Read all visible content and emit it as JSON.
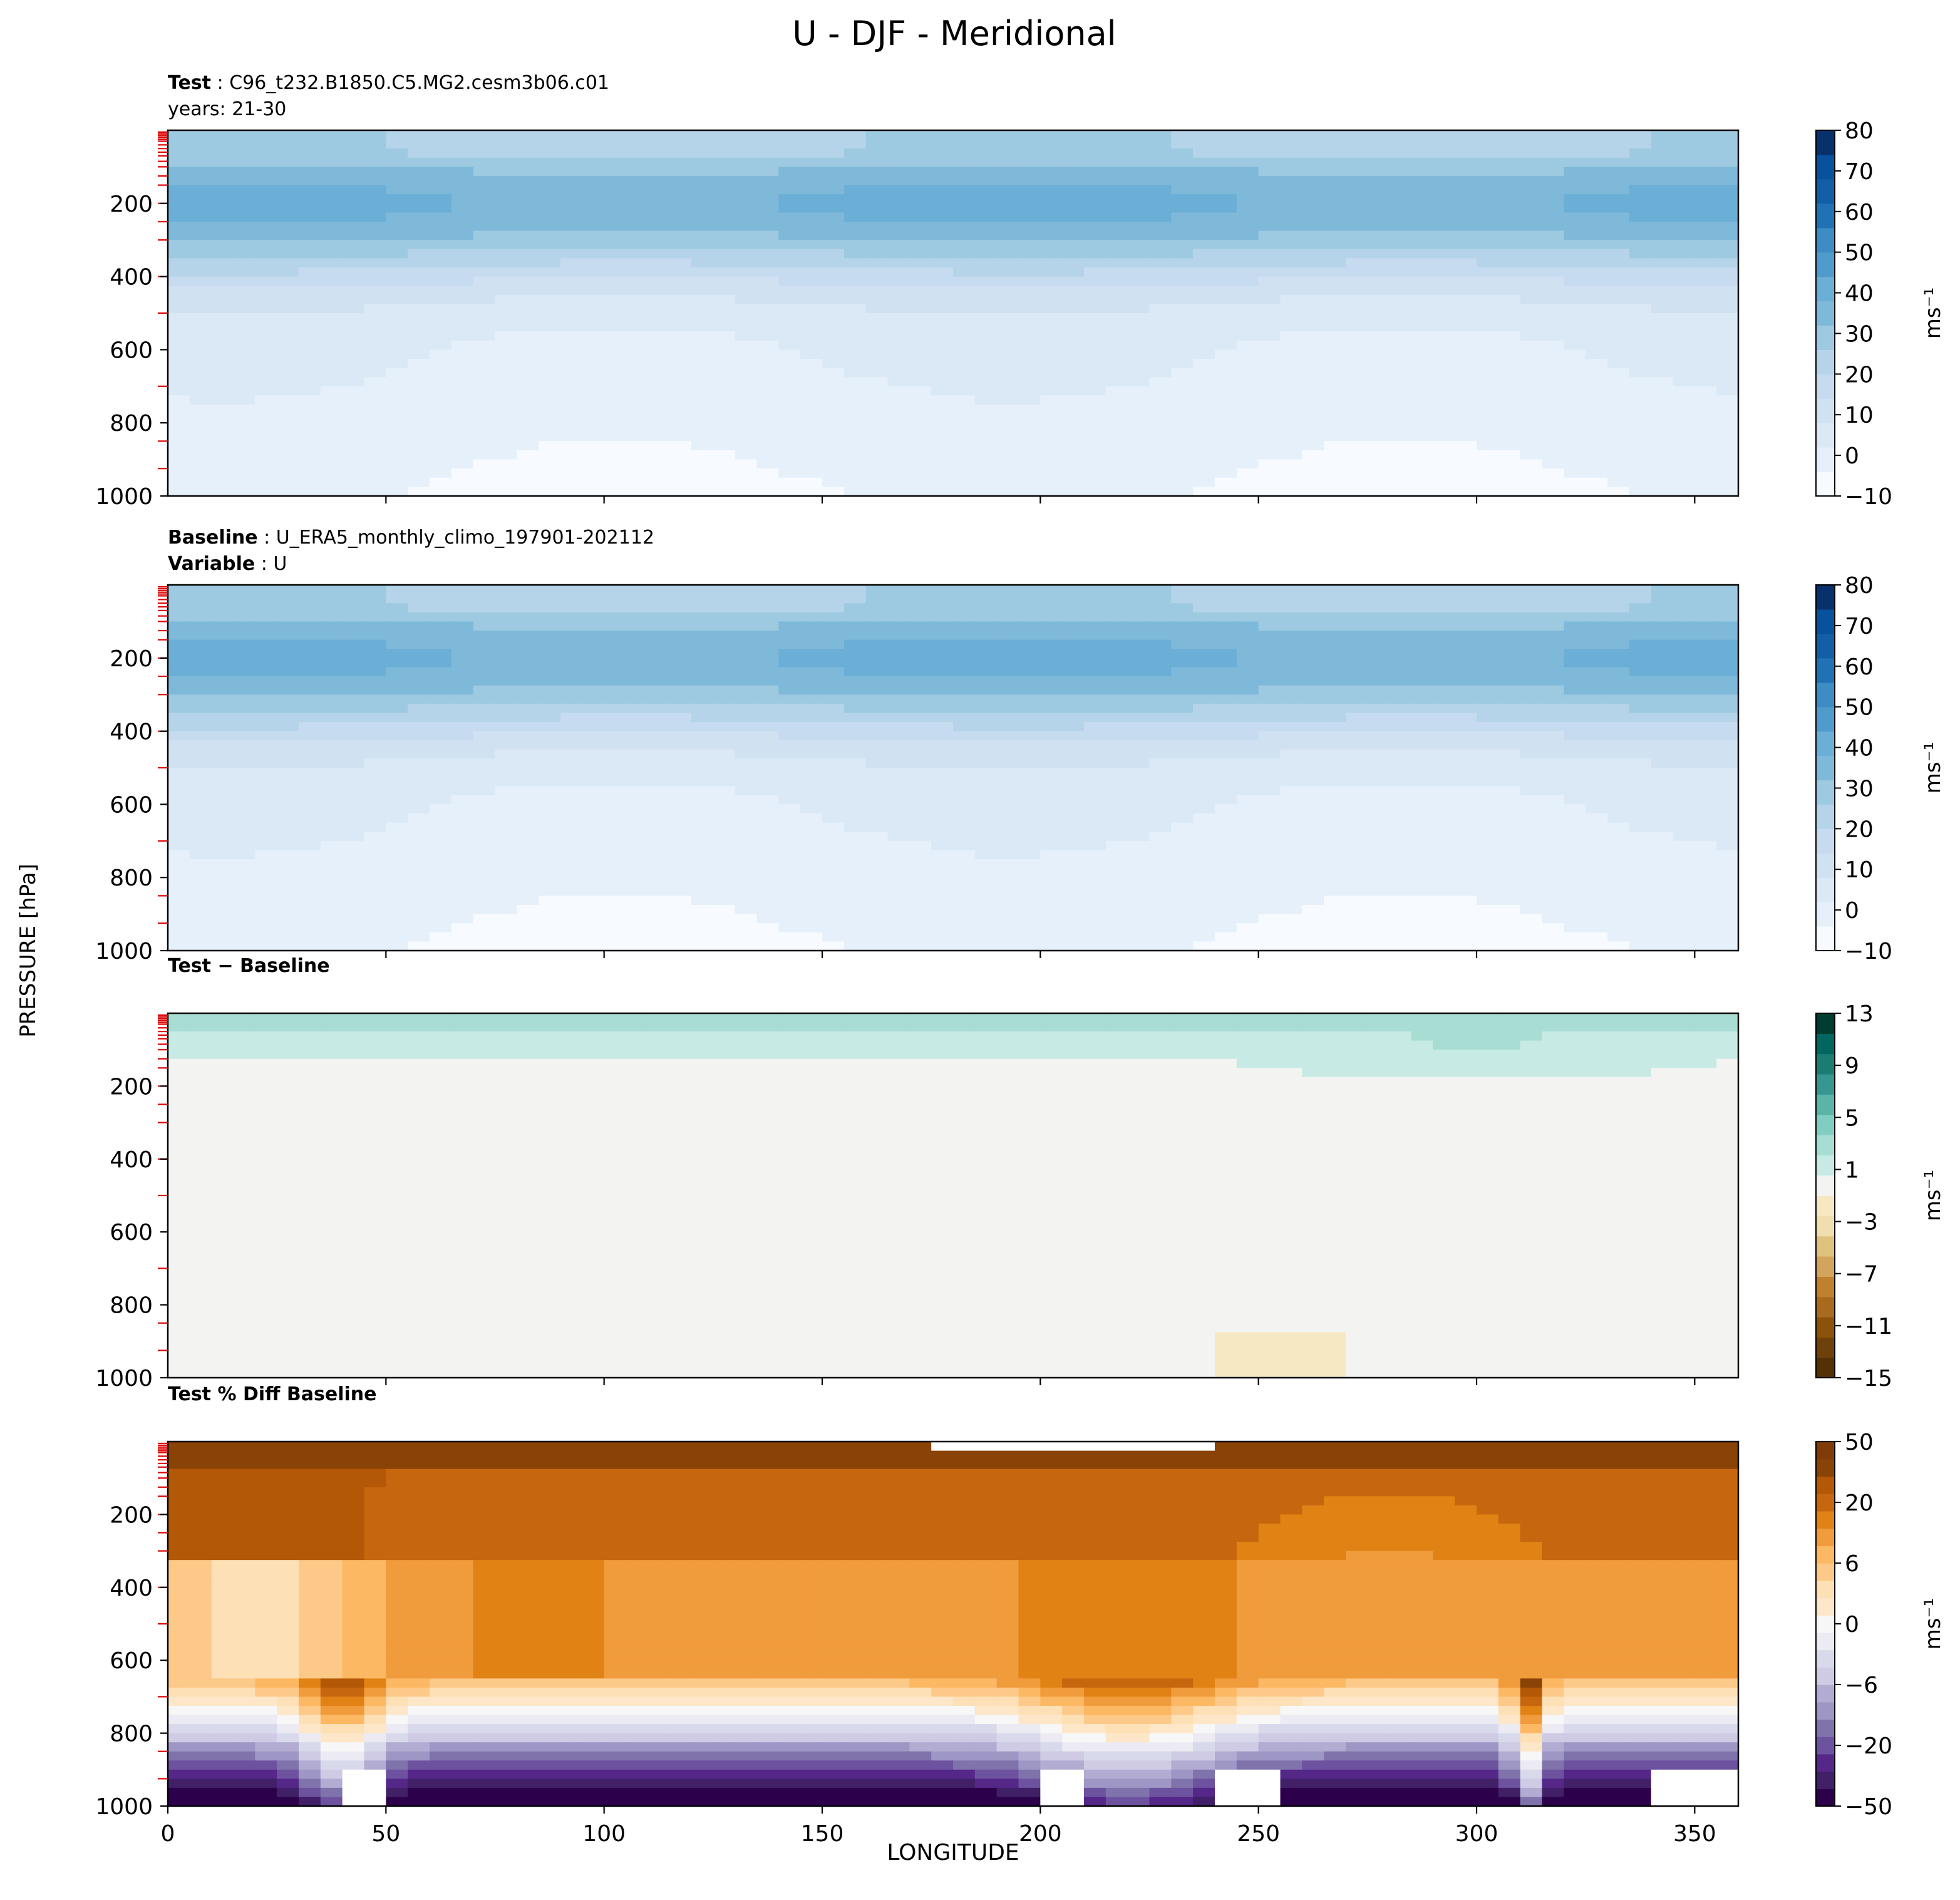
{
  "figure_title": "U - DJF - Meridional",
  "x_axis_label": "LONGITUDE",
  "y_axis_label": "PRESSURE [hPa]",
  "chart_data": [
    {
      "type": "heatmap",
      "panel": "test",
      "header": [
        {
          "label": "Test",
          "sep": " : ",
          "value": "C96_t232.B1850.C5.MG2.cesm3b06.c01"
        },
        {
          "label": "",
          "sep": "",
          "value": "years: 21-30"
        }
      ],
      "x_ticks": [
        50,
        100,
        150,
        200,
        250,
        300,
        350
      ],
      "y_ticks": [
        200,
        400,
        600,
        800,
        1000
      ],
      "xlim": [
        0,
        360
      ],
      "ylim": [
        1000,
        0
      ],
      "colorbar": {
        "ticks": [
          "80",
          "70",
          "60",
          "50",
          "40",
          "30",
          "20",
          "10",
          "0",
          "−10"
        ],
        "units": "ms⁻¹",
        "colormap": "Blues"
      }
    },
    {
      "type": "heatmap",
      "panel": "baseline",
      "header": [
        {
          "label": "Baseline",
          "sep": " : ",
          "value": "U_ERA5_monthly_climo_197901-202112"
        },
        {
          "label": "Variable",
          "sep": " : ",
          "value": "U"
        }
      ],
      "x_ticks": [
        50,
        100,
        150,
        200,
        250,
        300,
        350
      ],
      "y_ticks": [
        200,
        400,
        600,
        800,
        1000
      ],
      "xlim": [
        0,
        360
      ],
      "ylim": [
        1000,
        0
      ],
      "colorbar": {
        "ticks": [
          "80",
          "70",
          "60",
          "50",
          "40",
          "30",
          "20",
          "10",
          "0",
          "−10"
        ],
        "units": "ms⁻¹",
        "colormap": "Blues"
      }
    },
    {
      "type": "heatmap",
      "panel": "difference",
      "header": [
        {
          "label": "Test − Baseline",
          "sep": "",
          "value": ""
        }
      ],
      "x_ticks": [
        50,
        100,
        150,
        200,
        250,
        300,
        350
      ],
      "y_ticks": [
        200,
        400,
        600,
        800,
        1000
      ],
      "xlim": [
        0,
        360
      ],
      "ylim": [
        1000,
        0
      ],
      "colorbar": {
        "ticks": [
          "13",
          "9",
          "5",
          "1",
          "−3",
          "−7",
          "−11",
          "−15"
        ],
        "units": "ms⁻¹",
        "colormap": "BrBG"
      }
    },
    {
      "type": "heatmap",
      "panel": "percent-difference",
      "header": [
        {
          "label": "Test % Diff Baseline",
          "sep": "",
          "value": ""
        }
      ],
      "x_ticks": [
        0,
        50,
        100,
        150,
        200,
        250,
        300,
        350
      ],
      "y_ticks": [
        200,
        400,
        600,
        800,
        1000
      ],
      "xlim": [
        0,
        360
      ],
      "ylim": [
        1000,
        0
      ],
      "colorbar": {
        "ticks": [
          "50",
          "20",
          "6",
          "0",
          "−6",
          "−20",
          "−50"
        ],
        "units": "ms⁻¹",
        "colormap": "PuOr"
      }
    }
  ]
}
